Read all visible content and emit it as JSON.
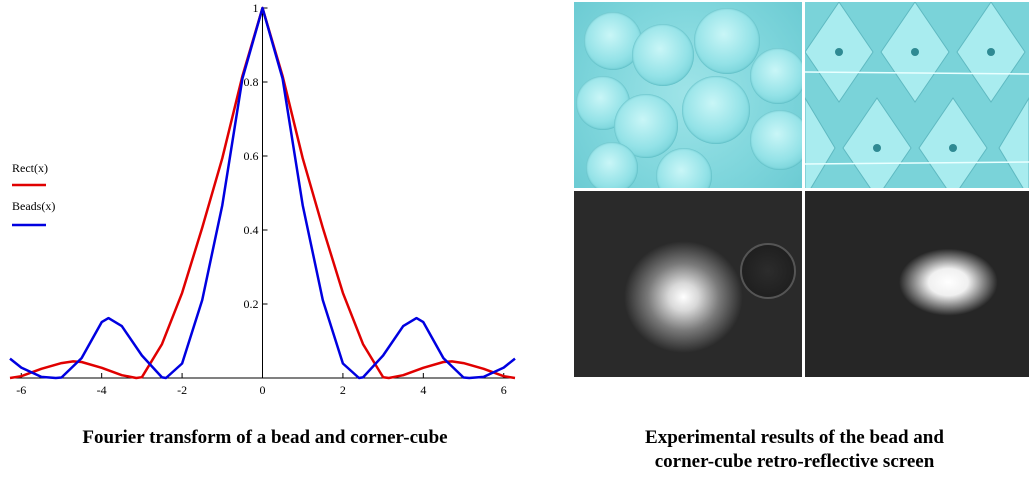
{
  "chart_data": {
    "type": "line",
    "title": "",
    "xlabel": "",
    "ylabel": "",
    "xlim": [
      -6.28,
      6.28
    ],
    "ylim": [
      0,
      1
    ],
    "x_ticks": [
      "-6",
      "-4",
      "-2",
      "0",
      "2",
      "4",
      "6"
    ],
    "y_ticks": [
      "0.2",
      "0.4",
      "0.6",
      "0.8",
      "1"
    ],
    "grid": false,
    "legend_placement": "left",
    "series": [
      {
        "name": "Rect(x)",
        "color": "#e00000",
        "x": [
          -6.28,
          -6.0,
          -5.5,
          -5.0,
          -4.71,
          -4.5,
          -4.0,
          -3.5,
          -3.14,
          -3.0,
          -2.5,
          -2.0,
          -1.5,
          -1.0,
          -0.5,
          0,
          0.5,
          1.0,
          1.5,
          2.0,
          2.5,
          3.0,
          3.14,
          3.5,
          4.0,
          4.5,
          4.71,
          5.0,
          5.5,
          6.0,
          6.28
        ],
        "y": [
          0.0,
          0.0049,
          0.0249,
          0.0404,
          0.045,
          0.0433,
          0.0275,
          0.0075,
          0.0,
          0.0022,
          0.0916,
          0.23,
          0.406,
          0.594,
          0.816,
          1.0,
          0.816,
          0.594,
          0.406,
          0.23,
          0.0916,
          0.0022,
          0.0,
          0.0075,
          0.0275,
          0.0433,
          0.045,
          0.0404,
          0.0249,
          0.0049,
          0.0
        ]
      },
      {
        "name": "Beads(x)",
        "color": "#0000e0",
        "x": [
          -6.28,
          -6.0,
          -5.5,
          -5.14,
          -5.0,
          -4.5,
          -4.0,
          -3.83,
          -3.5,
          -3.0,
          -2.5,
          -2.4,
          -2.0,
          -1.5,
          -1.0,
          -0.5,
          0,
          0.5,
          1.0,
          1.5,
          2.0,
          2.4,
          2.5,
          3.0,
          3.5,
          3.83,
          4.0,
          4.5,
          5.0,
          5.14,
          5.5,
          6.0,
          6.28
        ],
        "y": [
          0.0525,
          0.028,
          0.0029,
          0.0,
          0.0014,
          0.0539,
          0.151,
          0.162,
          0.1403,
          0.0609,
          0.0017,
          0.0,
          0.0391,
          0.2106,
          0.467,
          0.809,
          1.0,
          0.809,
          0.467,
          0.2106,
          0.0391,
          0.0,
          0.0017,
          0.0609,
          0.1403,
          0.162,
          0.151,
          0.0539,
          0.0014,
          0.0,
          0.0029,
          0.028,
          0.0525
        ]
      }
    ]
  },
  "captions": {
    "left": "Fourier transform of a bead and corner-cube",
    "right_line1": "Experimental results of the bead and",
    "right_line2": "corner-cube retro-reflective screen"
  }
}
